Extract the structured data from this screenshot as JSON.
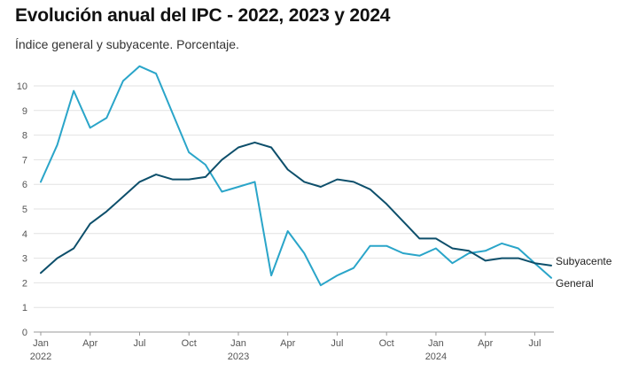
{
  "title": "Evolución anual del IPC - 2022, 2023 y 2024",
  "subtitle": "Índice general y subyacente. Porcentaje.",
  "chart_data": {
    "type": "line",
    "ylim": [
      0,
      10
    ],
    "y_ticks": [
      0,
      1,
      2,
      3,
      4,
      5,
      6,
      7,
      8,
      9,
      10
    ],
    "grid": "horizontal",
    "x_ticks": [
      {
        "index": 0,
        "label": "Jan",
        "year": "2022"
      },
      {
        "index": 3,
        "label": "Apr",
        "year": ""
      },
      {
        "index": 6,
        "label": "Jul",
        "year": ""
      },
      {
        "index": 9,
        "label": "Oct",
        "year": ""
      },
      {
        "index": 12,
        "label": "Jan",
        "year": "2023"
      },
      {
        "index": 15,
        "label": "Apr",
        "year": ""
      },
      {
        "index": 18,
        "label": "Jul",
        "year": ""
      },
      {
        "index": 21,
        "label": "Oct",
        "year": ""
      },
      {
        "index": 24,
        "label": "Jan",
        "year": "2024"
      },
      {
        "index": 27,
        "label": "Apr",
        "year": ""
      },
      {
        "index": 30,
        "label": "Jul",
        "year": ""
      }
    ],
    "x": [
      "2022-01",
      "2022-02",
      "2022-03",
      "2022-04",
      "2022-05",
      "2022-06",
      "2022-07",
      "2022-08",
      "2022-09",
      "2022-10",
      "2022-11",
      "2022-12",
      "2023-01",
      "2023-02",
      "2023-03",
      "2023-04",
      "2023-05",
      "2023-06",
      "2023-07",
      "2023-08",
      "2023-09",
      "2023-10",
      "2023-11",
      "2023-12",
      "2024-01",
      "2024-02",
      "2024-03",
      "2024-04",
      "2024-05",
      "2024-06",
      "2024-07",
      "2024-08"
    ],
    "series": [
      {
        "name": "General",
        "color": "#2aa5c9",
        "values": [
          6.1,
          7.6,
          9.8,
          8.3,
          8.7,
          10.2,
          10.8,
          10.5,
          8.9,
          7.3,
          6.8,
          5.7,
          5.9,
          6.1,
          2.3,
          4.1,
          3.2,
          1.9,
          2.3,
          2.6,
          3.5,
          3.5,
          3.2,
          3.1,
          3.4,
          2.8,
          3.2,
          3.3,
          3.6,
          3.4,
          2.8,
          2.2
        ]
      },
      {
        "name": "Subyacente",
        "color": "#0d4f6b",
        "values": [
          2.4,
          3.0,
          3.4,
          4.4,
          4.9,
          5.5,
          6.1,
          6.4,
          6.2,
          6.2,
          6.3,
          7.0,
          7.5,
          7.7,
          7.5,
          6.6,
          6.1,
          5.9,
          6.2,
          6.1,
          5.8,
          5.2,
          4.5,
          3.8,
          3.8,
          3.4,
          3.3,
          2.9,
          3.0,
          3.0,
          2.8,
          2.7
        ]
      }
    ]
  }
}
